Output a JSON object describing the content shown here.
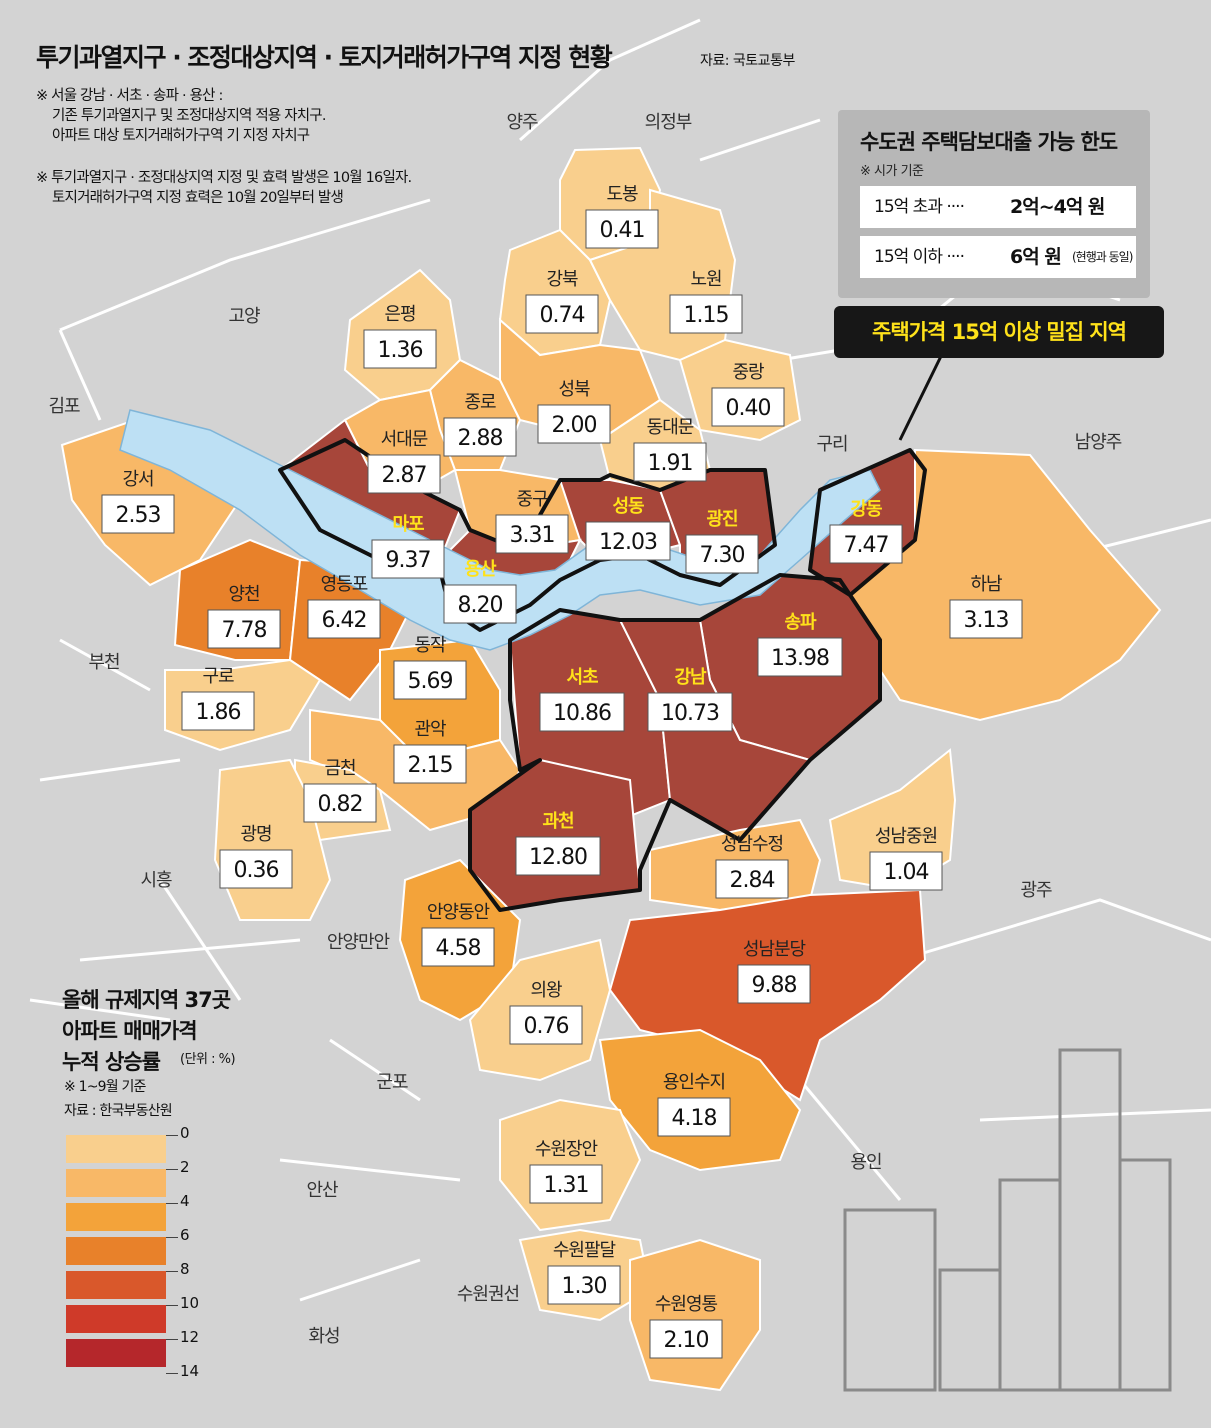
{
  "title": "투기과열지구 · 조정대상지역 · 토지거래허가구역 지정 현황",
  "source": "자료: 국토교통부",
  "notes": [
    "※ 서울 강남 · 서초 · 송파 · 용산 :",
    "기존 투기과열지구 및 조정대상지역 적용 자치구.",
    "아파트 대상 토지거래허가구역 기 지정 자치구",
    "※ 투기과열지구 · 조정대상지역 지정 및 효력 발생은 10월 16일자.",
    "토지거래허가구역 지정 효력은 10월 20일부터 발생"
  ],
  "loan_limit": {
    "title": "수도권 주택담보대출 가능 한도",
    "subtitle": "※ 시가 기준",
    "rows": [
      {
        "label": "15억 초과 ····",
        "amount": "2억~4억 원",
        "note": ""
      },
      {
        "label": "15억 이하 ····",
        "amount": "6억 원",
        "note": "(현행과 동일)"
      }
    ]
  },
  "callout": "주택가격 15억 이상 밀집 지역",
  "legend": {
    "title_lines": [
      "올해 규제지역 37곳",
      "아파트 매매가격",
      "누적 상승률"
    ],
    "unit": "(단위 : %)",
    "notes": [
      "※ 1~9월 기준",
      "자료 : 한국부동산원"
    ],
    "bins": [
      {
        "from": 0,
        "to": 2,
        "color": "#f9cf8d"
      },
      {
        "from": 2,
        "to": 4,
        "color": "#f8b867"
      },
      {
        "from": 4,
        "to": 6,
        "color": "#f3a33a"
      },
      {
        "from": 6,
        "to": 8,
        "color": "#e8812a"
      },
      {
        "from": 8,
        "to": 10,
        "color": "#d9582b"
      },
      {
        "from": 10,
        "to": 12,
        "color": "#cf3a29"
      },
      {
        "from": 12,
        "to": 14,
        "color": "#b5272b"
      }
    ],
    "labels": [
      "0",
      "2",
      "4",
      "6",
      "8",
      "10",
      "12",
      "14"
    ]
  },
  "colors": {
    "background_land": "#d3d3d3",
    "river": "#bde0f4",
    "dense_region": "#a7463a",
    "label_yellow": "#ffe21a"
  },
  "map_labels": [
    "양주",
    "의정부",
    "고양",
    "김포",
    "구리",
    "남양주",
    "부천",
    "시흥",
    "광주",
    "안양만안",
    "군포",
    "안산",
    "용인",
    "수원권선",
    "화성"
  ],
  "regions": [
    {
      "name": "도봉",
      "value": "0.41",
      "dense": false
    },
    {
      "name": "강북",
      "value": "0.74",
      "dense": false
    },
    {
      "name": "노원",
      "value": "1.15",
      "dense": false
    },
    {
      "name": "은평",
      "value": "1.36",
      "dense": false
    },
    {
      "name": "중랑",
      "value": "0.40",
      "dense": false
    },
    {
      "name": "종로",
      "value": "2.88",
      "dense": false
    },
    {
      "name": "성북",
      "value": "2.00",
      "dense": false
    },
    {
      "name": "서대문",
      "value": "2.87",
      "dense": false
    },
    {
      "name": "동대문",
      "value": "1.91",
      "dense": false
    },
    {
      "name": "강서",
      "value": "2.53",
      "dense": false
    },
    {
      "name": "마포",
      "value": "9.37",
      "dense": true
    },
    {
      "name": "중구",
      "value": "3.31",
      "dense": false
    },
    {
      "name": "성동",
      "value": "12.03",
      "dense": true
    },
    {
      "name": "광진",
      "value": "7.30",
      "dense": true
    },
    {
      "name": "강동",
      "value": "7.47",
      "dense": true
    },
    {
      "name": "양천",
      "value": "7.78",
      "dense": false
    },
    {
      "name": "영등포",
      "value": "6.42",
      "dense": false
    },
    {
      "name": "용산",
      "value": "8.20",
      "dense": true
    },
    {
      "name": "하남",
      "value": "3.13",
      "dense": false
    },
    {
      "name": "송파",
      "value": "13.98",
      "dense": true
    },
    {
      "name": "동작",
      "value": "5.69",
      "dense": false
    },
    {
      "name": "구로",
      "value": "1.86",
      "dense": false
    },
    {
      "name": "서초",
      "value": "10.86",
      "dense": true
    },
    {
      "name": "강남",
      "value": "10.73",
      "dense": true
    },
    {
      "name": "관악",
      "value": "2.15",
      "dense": false
    },
    {
      "name": "금천",
      "value": "0.82",
      "dense": false
    },
    {
      "name": "과천",
      "value": "12.80",
      "dense": true
    },
    {
      "name": "광명",
      "value": "0.36",
      "dense": false
    },
    {
      "name": "성남수정",
      "value": "2.84",
      "dense": false
    },
    {
      "name": "성남중원",
      "value": "1.04",
      "dense": false
    },
    {
      "name": "안양동안",
      "value": "4.58",
      "dense": false
    },
    {
      "name": "성남분당",
      "value": "9.88",
      "dense": false
    },
    {
      "name": "의왕",
      "value": "0.76",
      "dense": false
    },
    {
      "name": "용인수지",
      "value": "4.18",
      "dense": false
    },
    {
      "name": "수원장안",
      "value": "1.31",
      "dense": false
    },
    {
      "name": "수원팔달",
      "value": "1.30",
      "dense": false
    },
    {
      "name": "수원영통",
      "value": "2.10",
      "dense": false
    }
  ]
}
